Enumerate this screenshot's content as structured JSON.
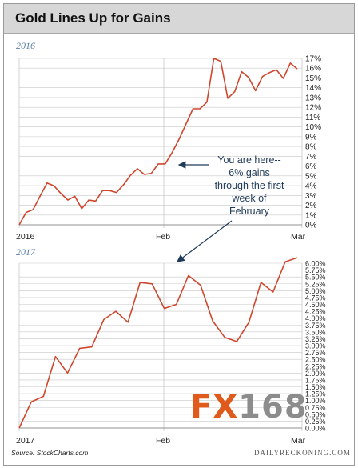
{
  "header": {
    "title": "Gold Lines Up for Gains"
  },
  "footer": {
    "source": "Source: StockCharts.com",
    "brand": "DAILYRECKONING.COM"
  },
  "watermark": {
    "fx": "FX",
    "num": "168"
  },
  "annotation": {
    "lines": [
      "You are here--",
      "6% gains",
      "through the first",
      "week of",
      "February"
    ]
  },
  "colors": {
    "line": "#d0462c",
    "grid": "#c8c8c8",
    "label": "#5a7ea6",
    "arrow": "#1f3a5a",
    "header_bg": "#d7d7d7"
  },
  "chart_data": [
    {
      "type": "line",
      "title": "2016",
      "x_labels": [
        "2016",
        "Feb",
        "Mar"
      ],
      "ylim": [
        0,
        17.5
      ],
      "y_ticks": [
        "0%",
        "1%",
        "2%",
        "3%",
        "4%",
        "5%",
        "6%",
        "7%",
        "8%",
        "9%",
        "10%",
        "11%",
        "12%",
        "13%",
        "14%",
        "15%",
        "16%",
        "17%"
      ],
      "grid": true,
      "series": [
        {
          "values": [
            0,
            1.3,
            1.6,
            3.0,
            4.4,
            4.1,
            3.3,
            2.6,
            3.0,
            1.7,
            2.6,
            2.5,
            3.6,
            3.6,
            3.4,
            4.2,
            5.2,
            5.9,
            5.3,
            5.4,
            6.4,
            6.4,
            7.6,
            9.0,
            10.6,
            12.2,
            12.2,
            12.9,
            17.5,
            17.2,
            13.3,
            14.0,
            16.1,
            15.5,
            14.1,
            15.6,
            16.0,
            16.3,
            15.4,
            17.0,
            16.4
          ]
        }
      ]
    },
    {
      "type": "line",
      "title": "2017",
      "x_labels": [
        "2017",
        "Feb",
        "Mar"
      ],
      "ylim": [
        0,
        6.0
      ],
      "y_ticks": [
        "0.00%",
        "0.25%",
        "0.50%",
        "0.75%",
        "1.00%",
        "1.25%",
        "1.50%",
        "1.75%",
        "2.00%",
        "2.25%",
        "2.50%",
        "2.75%",
        "3.00%",
        "3.25%",
        "3.50%",
        "3.75%",
        "4.00%",
        "4.25%",
        "4.50%",
        "4.75%",
        "5.00%",
        "5.25%",
        "5.50%",
        "5.75%",
        "6.00%"
      ],
      "grid": true,
      "series": [
        {
          "values": [
            0,
            0.95,
            1.15,
            2.6,
            2.0,
            2.9,
            2.95,
            3.95,
            4.25,
            3.85,
            5.3,
            5.25,
            4.35,
            4.5,
            5.55,
            5.2,
            3.9,
            3.3,
            3.15,
            3.85,
            5.3,
            4.95,
            6.05,
            6.2
          ]
        }
      ]
    }
  ]
}
